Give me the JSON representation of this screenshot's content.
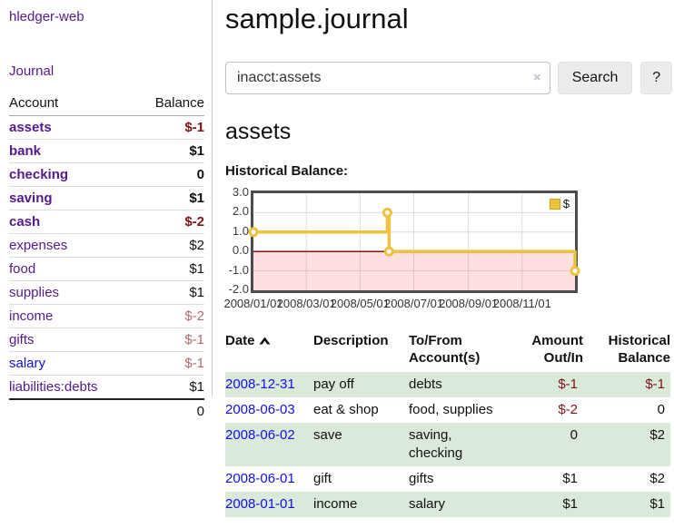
{
  "colors": {
    "link_visited": "#551a8b",
    "link_unvisited": "#1310e0",
    "negative_strong": "#7c1414",
    "negative_muted": "#b26b6b",
    "row_stripe_green": "#dbe9da",
    "chart_gold": "#edc240",
    "chart_zero_line": "#8b1212",
    "chart_negative_fill": "rgba(255,0,0,0.12)"
  },
  "sidebar": {
    "brand": "hledger-web",
    "journal_label": "Journal",
    "accounts": {
      "header_account": "Account",
      "header_balance": "Balance",
      "rows": [
        {
          "name": "assets",
          "indent": 1,
          "bold": true,
          "link": "purple",
          "balance": "$-1",
          "balance_class": "neg-strong"
        },
        {
          "name": "bank",
          "indent": 2,
          "bold": true,
          "link": "purple",
          "balance": "$1",
          "balance_class": "pos"
        },
        {
          "name": "checking",
          "indent": 3,
          "bold": true,
          "link": "purple",
          "balance": "0",
          "balance_class": "pos"
        },
        {
          "name": "saving",
          "indent": 3,
          "bold": true,
          "link": "purple",
          "balance": "$1",
          "balance_class": "pos"
        },
        {
          "name": "cash",
          "indent": 2,
          "bold": true,
          "link": "purple",
          "balance": "$-2",
          "balance_class": "neg-strong"
        },
        {
          "name": "expenses",
          "indent": 1,
          "bold": false,
          "link": "purple",
          "balance": "$2",
          "balance_class": "pos"
        },
        {
          "name": "food",
          "indent": 2,
          "bold": false,
          "link": "purple",
          "balance": "$1",
          "balance_class": "pos"
        },
        {
          "name": "supplies",
          "indent": 2,
          "bold": false,
          "link": "purple",
          "balance": "$1",
          "balance_class": "pos"
        },
        {
          "name": "income",
          "indent": 1,
          "bold": false,
          "link": "purple",
          "balance": "$-2",
          "balance_class": "neg-muted"
        },
        {
          "name": "gifts",
          "indent": 2,
          "bold": false,
          "link": "purple",
          "balance": "$-1",
          "balance_class": "neg-muted"
        },
        {
          "name": "salary",
          "indent": 2,
          "bold": false,
          "link": "blue",
          "balance": "$-1",
          "balance_class": "neg-muted"
        },
        {
          "name": "liabilities:debts",
          "indent": 1,
          "bold": false,
          "link": "purple",
          "balance": "$1",
          "balance_class": "pos"
        }
      ],
      "total": "0"
    }
  },
  "main": {
    "title": "sample.journal",
    "search": {
      "value": "inacct:assets",
      "clear_icon": "×",
      "button_label": "Search",
      "help_label": "?"
    },
    "account_heading": "assets",
    "chart_label": "Historical Balance:"
  },
  "chart_data": {
    "type": "line",
    "step": true,
    "title": "Historical Balance",
    "legend_position": "top-right",
    "grid": true,
    "xlim": [
      "2008-01-01",
      "2008-12-31"
    ],
    "ylim": [
      -2.0,
      3.0
    ],
    "y_ticks": [
      {
        "value": 3,
        "label": "3.0"
      },
      {
        "value": 2,
        "label": "2.0"
      },
      {
        "value": 1,
        "label": "1.0"
      },
      {
        "value": 0,
        "label": "0.0"
      },
      {
        "value": -1,
        "label": "-1.0"
      },
      {
        "value": -2,
        "label": "-2.0"
      }
    ],
    "x_ticks": [
      {
        "date": "2008-01-01",
        "label": "2008/01/01"
      },
      {
        "date": "2008-03-01",
        "label": "2008/03/01"
      },
      {
        "date": "2008-05-01",
        "label": "2008/05/01"
      },
      {
        "date": "2008-07-01",
        "label": "2008/07/01"
      },
      {
        "date": "2008-09-01",
        "label": "2008/09/01"
      },
      {
        "date": "2008-11-01",
        "label": "2008/11/01"
      }
    ],
    "series": [
      {
        "name": "$",
        "color": "#edc240",
        "points": [
          {
            "date": "2008-01-01",
            "value": 1
          },
          {
            "date": "2008-06-01",
            "value": 2
          },
          {
            "date": "2008-06-03",
            "value": 0
          },
          {
            "date": "2008-12-31",
            "value": -1
          }
        ]
      }
    ]
  },
  "register": {
    "headers": [
      {
        "lines": [
          "Date"
        ],
        "sort": "asc",
        "align": "left"
      },
      {
        "lines": [
          "Description"
        ],
        "align": "left"
      },
      {
        "lines": [
          "To/From",
          "Account(s)"
        ],
        "align": "left"
      },
      {
        "lines": [
          "Amount",
          "Out/In"
        ],
        "align": "right"
      },
      {
        "lines": [
          "Historical",
          "Balance"
        ],
        "align": "right"
      }
    ],
    "rows": [
      {
        "date": "2008-12-31",
        "description": "pay off",
        "accounts": "debts",
        "amount": "$-1",
        "amount_neg": true,
        "balance": "$-1",
        "balance_neg": true,
        "stripe": true
      },
      {
        "date": "2008-06-03",
        "description": "eat & shop",
        "accounts": "food, supplies",
        "amount": "$-2",
        "amount_neg": true,
        "balance": "0",
        "balance_neg": false,
        "stripe": false
      },
      {
        "date": "2008-06-02",
        "description": "save",
        "accounts": "saving, checking",
        "amount": "0",
        "amount_neg": false,
        "balance": "$2",
        "balance_neg": false,
        "stripe": true
      },
      {
        "date": "2008-06-01",
        "description": "gift",
        "accounts": "gifts",
        "amount": "$1",
        "amount_neg": false,
        "balance": "$2",
        "balance_neg": false,
        "stripe": false
      },
      {
        "date": "2008-01-01",
        "description": "income",
        "accounts": "salary",
        "amount": "$1",
        "amount_neg": false,
        "balance": "$1",
        "balance_neg": false,
        "stripe": true
      }
    ]
  }
}
